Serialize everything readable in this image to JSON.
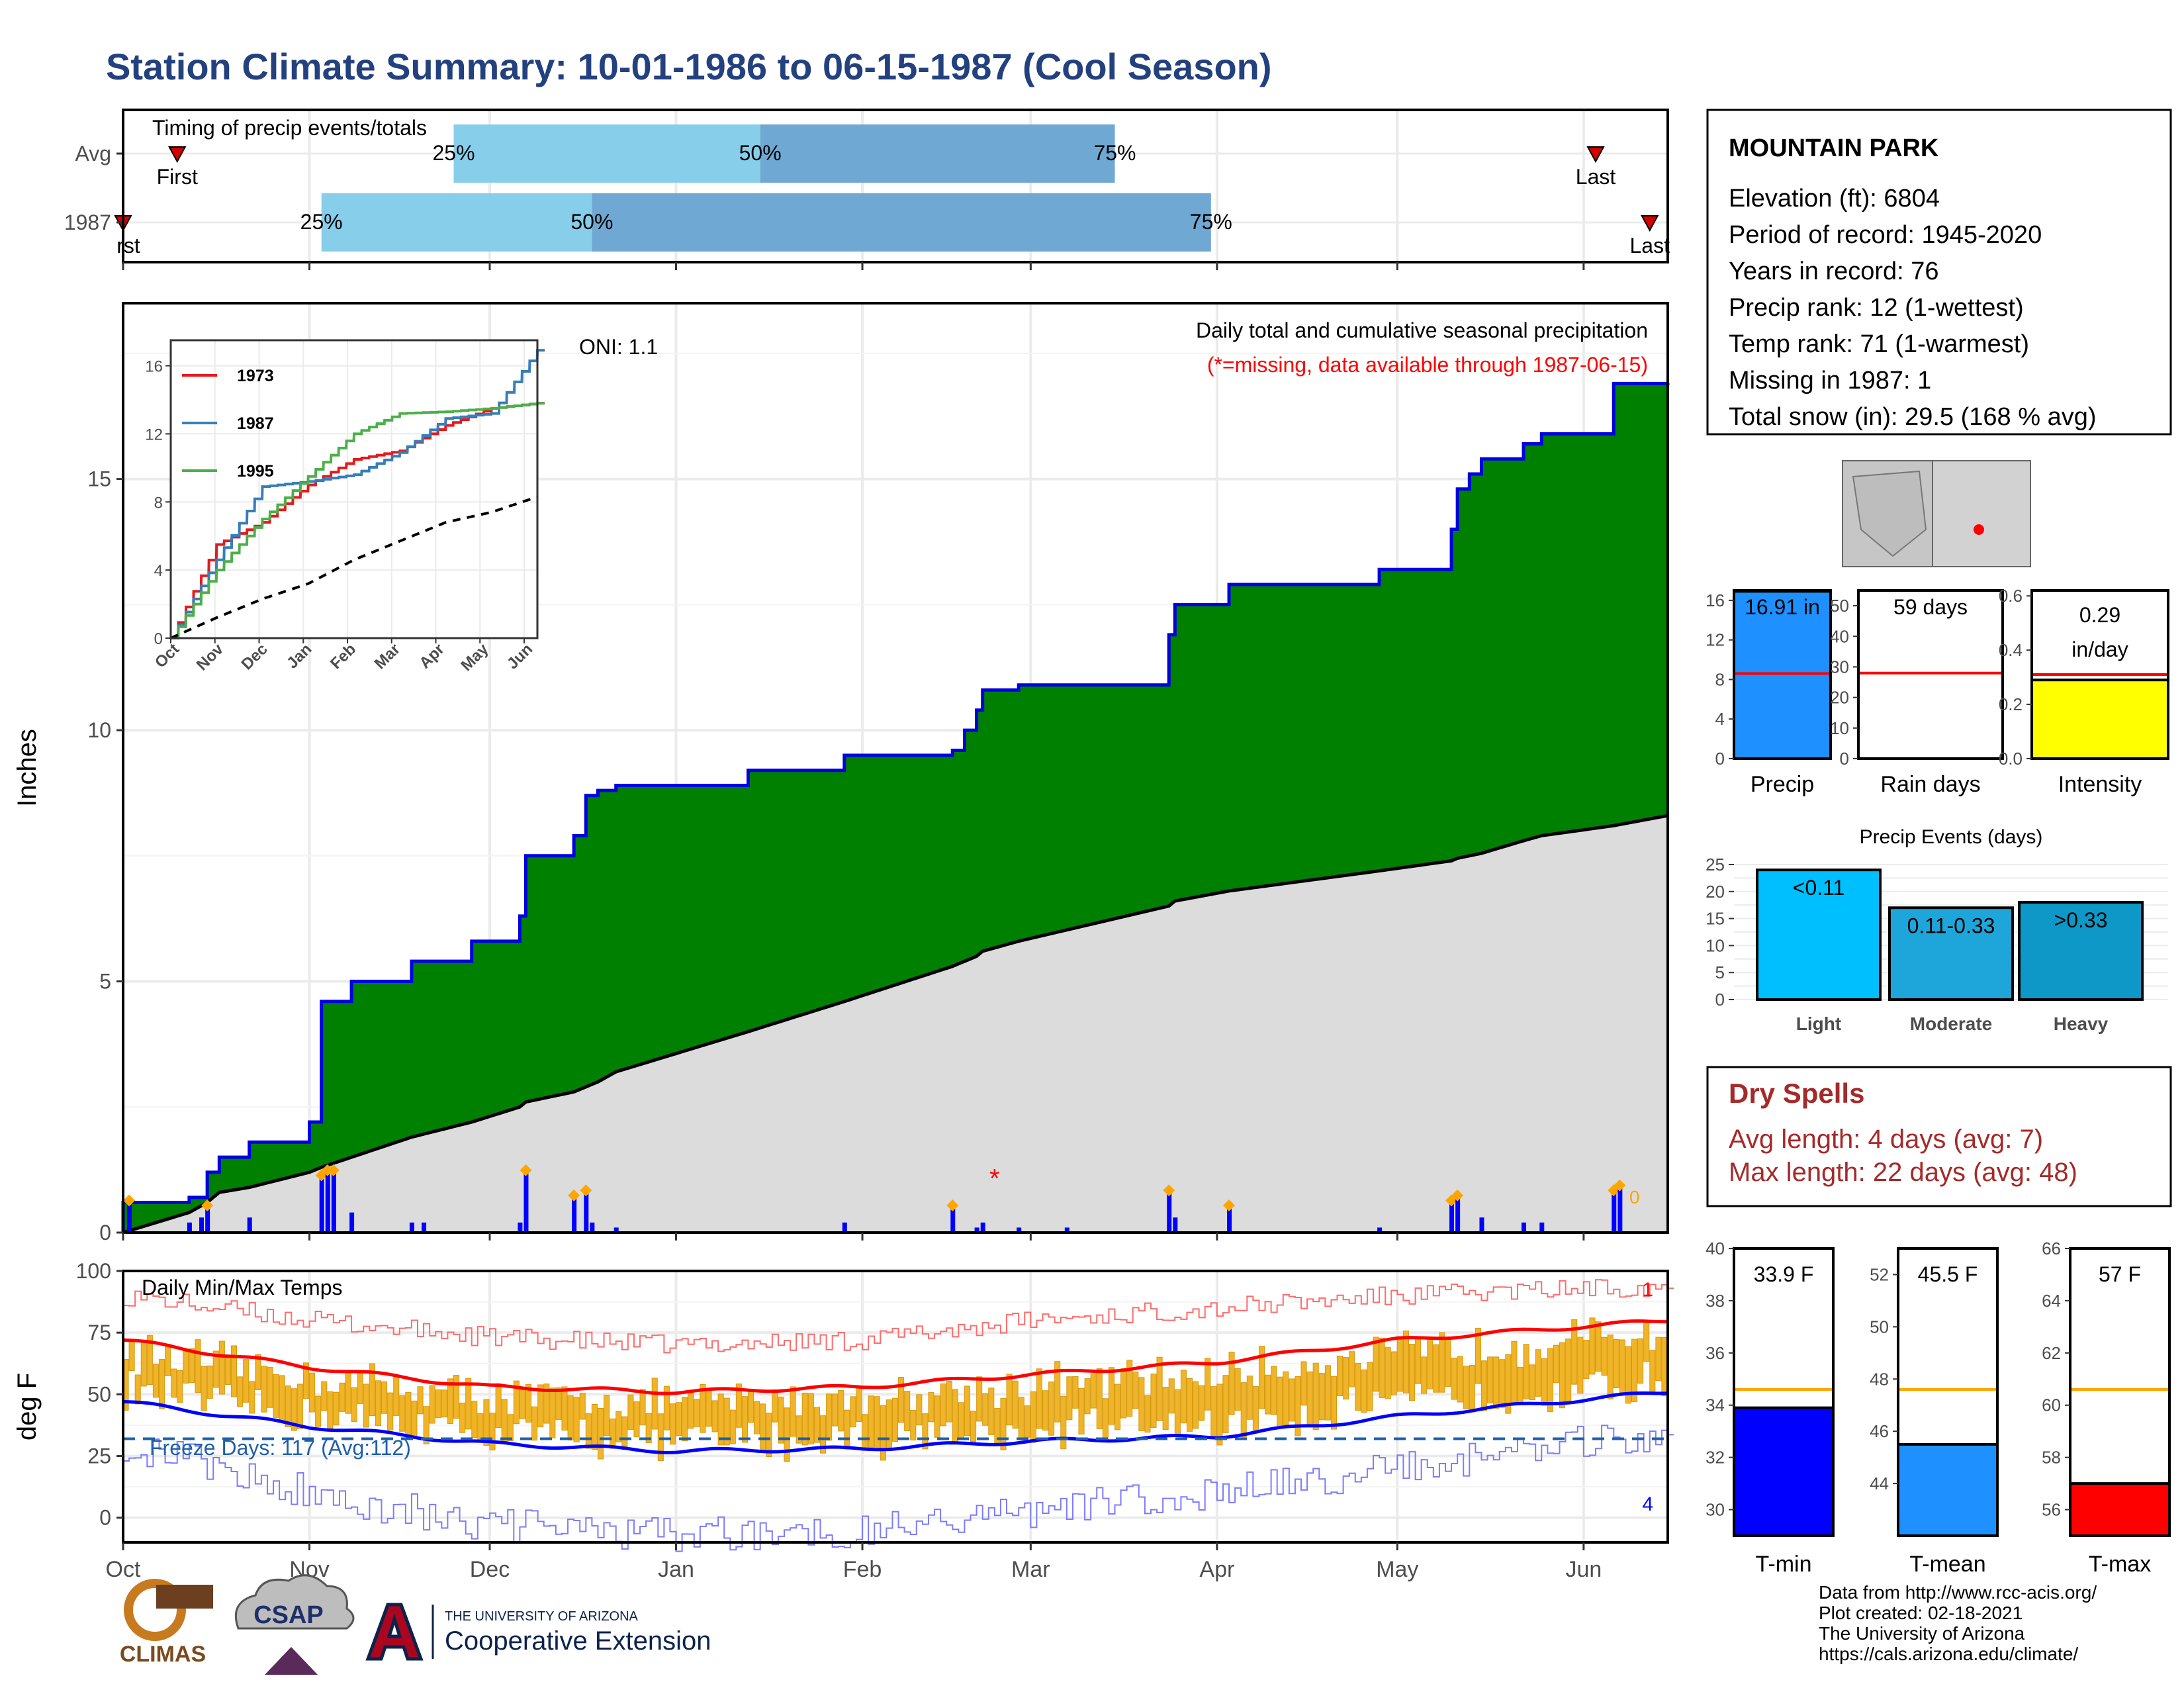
{
  "title": "Station Climate Summary: 10-01-1986 to 06-15-1987 (Cool Season)",
  "station": {
    "name": "MOUNTAIN PARK",
    "lines": [
      "Elevation (ft): 6804",
      "Period of record: 1945-2020",
      "Years in record: 76",
      "Precip rank: 12 (1-wettest)",
      "Temp rank: 71 (1-warmest)",
      "Missing in 1987: 1",
      "Total snow (in): 29.5 (168 % avg)"
    ]
  },
  "timing": {
    "title": "Timing of precip events/totals",
    "row_labels": [
      "Avg",
      "1987"
    ],
    "first_label": "First",
    "first_label_1987": "rst",
    "last_label": "Last",
    "pct_labels": [
      "25%",
      "50%",
      "75%"
    ],
    "avg": {
      "first": "1986-10-10",
      "p25": "1986-11-25",
      "p50": "1987-01-15",
      "p75": "1987-03-15",
      "last": "1987-06-03"
    },
    "y1987": {
      "first": "1986-10-01",
      "p25": "1986-11-03",
      "p50": "1986-12-18",
      "p75": "1987-03-31",
      "last": "1987-06-12"
    },
    "colors": {
      "early": "#87ceeb",
      "late": "#6fa8d2"
    }
  },
  "months": [
    "Oct",
    "Nov",
    "Dec",
    "Jan",
    "Feb",
    "Mar",
    "Apr",
    "May",
    "Jun"
  ],
  "precip_panel": {
    "ylabel": "Inches",
    "yticks": [
      0,
      5,
      10,
      15
    ],
    "oni": "ONI: 1.1",
    "caption": "Daily total and cumulative seasonal precipitation",
    "missing_note": "(*=missing, data available through 1987-06-15)",
    "end_marker": "0"
  },
  "inset": {
    "yticks": [
      0,
      4,
      8,
      12,
      16
    ],
    "legend": [
      {
        "name": "1973",
        "color": "#e41a1c"
      },
      {
        "name": "1987",
        "color": "#377eb8"
      },
      {
        "name": "1995",
        "color": "#4daf4a"
      }
    ]
  },
  "bar_stats": [
    {
      "label": "Precip",
      "value_text": "16.91 in",
      "value": 16.91,
      "avg": 8.6,
      "ymax": 17,
      "ticks": [
        0,
        4,
        8,
        12,
        16
      ],
      "color": "#1e90ff"
    },
    {
      "label": "Rain days",
      "value_text": "59 days",
      "value": 59,
      "avg": 28,
      "ymax": 55,
      "ticks": [
        0,
        10,
        20,
        30,
        40,
        50
      ],
      "color": "#ffffff"
    },
    {
      "label": "Intensity",
      "value_text": "0.29 in/day",
      "value_line1": "0.29",
      "value_line2": "in/day",
      "value": 0.29,
      "avg": 0.31,
      "ymax": 0.62,
      "ticks": [
        0.0,
        0.2,
        0.4,
        0.6
      ],
      "color": "#ffff00"
    }
  ],
  "events": {
    "title": "Precip Events (days)",
    "yticks": [
      0,
      5,
      10,
      15,
      20,
      25
    ],
    "bars": [
      {
        "label": "Light",
        "range": "<0.11",
        "value": 24,
        "color": "#00bfff"
      },
      {
        "label": "Moderate",
        "range": "0.11-0.33",
        "value": 17,
        "color": "#1ea6da"
      },
      {
        "label": "Heavy",
        "range": ">0.33",
        "value": 18,
        "color": "#0d98c8"
      }
    ]
  },
  "dry_spells": {
    "title": "Dry Spells",
    "avg": "Avg length: 4 days (avg: 7)",
    "max": "Max length: 22 days (avg: 48)"
  },
  "temp_panel": {
    "ylabel": "deg F",
    "title": "Daily Min/Max Temps",
    "yticks": [
      0,
      25,
      50,
      75,
      100
    ],
    "freeze": "Freeze Days: 117 (Avg:112)",
    "freeze_line": 32,
    "record_high_count": "1",
    "record_low_count": "4"
  },
  "temp_stats": [
    {
      "label": "T-min",
      "value_text": "33.9 F",
      "value": 33.9,
      "avg": 34.6,
      "ymin": 29,
      "ymax": 40,
      "ticks": [
        30,
        32,
        34,
        36,
        38,
        40
      ],
      "color": "#0000ff"
    },
    {
      "label": "T-mean",
      "value_text": "45.5 F",
      "value": 45.5,
      "avg": 47.6,
      "ymin": 42,
      "ymax": 53,
      "ticks": [
        44,
        46,
        48,
        50,
        52
      ],
      "color": "#1e90ff"
    },
    {
      "label": "T-max",
      "value_text": "57 F",
      "value": 57.0,
      "avg": 60.6,
      "ymin": 55,
      "ymax": 66,
      "ticks": [
        56,
        58,
        60,
        62,
        64,
        66
      ],
      "color": "#ff0000"
    }
  ],
  "footer": [
    "Data from http://www.rcc-acis.org/",
    "Plot created: 02-18-2021",
    "The University of Arizona",
    "https://cals.arizona.edu/climate/"
  ],
  "logos": {
    "climas": "CLIMAS",
    "csap": "CSAP",
    "ua_small": "THE UNIVERSITY OF ARIZONA",
    "ua_big": "Cooperative Extension"
  },
  "chart_data": [
    {
      "type": "area",
      "title": "Daily total and cumulative seasonal precipitation",
      "ylabel": "Inches",
      "ylim": [
        0,
        18.5
      ],
      "x": [
        "1986-10-01",
        "1986-10-12",
        "1986-10-15",
        "1986-10-17",
        "1986-10-22",
        "1986-11-01",
        "1986-11-03",
        "1986-11-08",
        "1986-11-18",
        "1986-11-28",
        "1986-12-06",
        "1986-12-07",
        "1986-12-15",
        "1986-12-17",
        "1986-12-19",
        "1986-12-22",
        "1987-01-13",
        "1987-01-29",
        "1987-02-16",
        "1987-02-18",
        "1987-02-20",
        "1987-02-21",
        "1987-02-27",
        "1987-03-24",
        "1987-03-25",
        "1987-04-03",
        "1987-04-28",
        "1987-05-10",
        "1987-05-11",
        "1987-05-13",
        "1987-05-15",
        "1987-05-22",
        "1987-05-25",
        "1987-06-06",
        "1987-06-15"
      ],
      "series": [
        {
          "name": "1987",
          "values": [
            0.6,
            0.7,
            1.2,
            1.5,
            1.8,
            2.2,
            4.6,
            5.0,
            5.4,
            5.8,
            6.3,
            7.5,
            7.9,
            8.7,
            8.8,
            8.9,
            9.2,
            9.5,
            9.6,
            10.0,
            10.4,
            10.8,
            10.9,
            11.9,
            12.5,
            12.9,
            13.2,
            14.0,
            14.8,
            15.1,
            15.4,
            15.7,
            15.9,
            16.9,
            16.91
          ]
        },
        {
          "name": "Avg",
          "values": [
            0.0,
            0.4,
            0.6,
            0.8,
            0.9,
            1.2,
            1.3,
            1.5,
            1.9,
            2.2,
            2.5,
            2.6,
            2.8,
            2.9,
            3.0,
            3.2,
            4.0,
            4.6,
            5.3,
            5.4,
            5.5,
            5.6,
            5.8,
            6.5,
            6.6,
            6.8,
            7.2,
            7.4,
            7.45,
            7.5,
            7.55,
            7.8,
            7.9,
            8.1,
            8.3
          ]
        }
      ]
    },
    {
      "type": "bar",
      "title": "Daily precipitation",
      "x": [
        "1986-10-02",
        "1986-10-12",
        "1986-10-14",
        "1986-10-15",
        "1986-10-22",
        "1986-11-03",
        "1986-11-04",
        "1986-11-05",
        "1986-11-08",
        "1986-11-18",
        "1986-11-20",
        "1986-12-06",
        "1986-12-07",
        "1986-12-15",
        "1986-12-17",
        "1986-12-18",
        "1986-12-22",
        "1987-01-29",
        "1987-02-16",
        "1987-02-20",
        "1987-02-21",
        "1987-02-27",
        "1987-03-07",
        "1987-03-24",
        "1987-03-25",
        "1987-04-03",
        "1987-04-28",
        "1987-05-10",
        "1987-05-11",
        "1987-05-15",
        "1987-05-22",
        "1987-05-25",
        "1987-06-06",
        "1987-06-07"
      ],
      "values": [
        0.6,
        0.2,
        0.3,
        0.5,
        0.3,
        1.1,
        1.2,
        1.2,
        0.4,
        0.2,
        0.2,
        0.2,
        1.2,
        0.7,
        0.8,
        0.2,
        0.1,
        0.2,
        0.5,
        0.1,
        0.2,
        0.1,
        0.1,
        0.8,
        0.3,
        0.5,
        0.1,
        0.6,
        0.7,
        0.3,
        0.2,
        0.2,
        0.8,
        0.9
      ],
      "missing": [
        "1987-02-23"
      ]
    },
    {
      "type": "line",
      "title": "Cumulative precipitation comparison",
      "categories": [
        "Oct",
        "Nov",
        "Dec",
        "Jan",
        "Feb",
        "Mar",
        "Apr",
        "May",
        "Jun"
      ],
      "ylim": [
        0,
        17.5
      ],
      "series": [
        {
          "name": "1973",
          "values": [
            0,
            5.5,
            6.8,
            9.0,
            10.5,
            11.0,
            12.5,
            13.5,
            13.8
          ]
        },
        {
          "name": "1987",
          "values": [
            0,
            4.6,
            8.9,
            9.2,
            9.6,
            10.9,
            12.9,
            13.2,
            16.91
          ]
        },
        {
          "name": "1995",
          "values": [
            0,
            4.0,
            7.0,
            9.5,
            12.0,
            13.2,
            13.3,
            13.5,
            13.8
          ]
        },
        {
          "name": "Avg",
          "values": [
            0,
            1.2,
            2.3,
            3.2,
            4.6,
            5.7,
            6.8,
            7.4,
            8.3
          ]
        }
      ]
    },
    {
      "type": "line",
      "title": "Daily Min/Max Temps",
      "ylabel": "deg F",
      "ylim": [
        -10,
        100
      ],
      "categories": [
        "Oct",
        "Nov",
        "Dec",
        "Jan",
        "Feb",
        "Mar",
        "Apr",
        "May",
        "Jun"
      ],
      "series": [
        {
          "name": "Avg max",
          "values": [
            72,
            61,
            53,
            51,
            53,
            58,
            63,
            72,
            80
          ]
        },
        {
          "name": "Avg min",
          "values": [
            47,
            37,
            30,
            27,
            28,
            31,
            33,
            41,
            51
          ]
        },
        {
          "name": "Record max",
          "values": [
            90,
            80,
            73,
            70,
            72,
            80,
            85,
            90,
            94
          ]
        },
        {
          "name": "Record min",
          "values": [
            30,
            10,
            -3,
            -7,
            -5,
            3,
            10,
            20,
            35
          ]
        }
      ],
      "freeze_line": 32
    },
    {
      "type": "bar",
      "title": "Precip Events (days)",
      "categories": [
        "Light",
        "Moderate",
        "Heavy"
      ],
      "values": [
        24,
        17,
        18
      ]
    }
  ]
}
